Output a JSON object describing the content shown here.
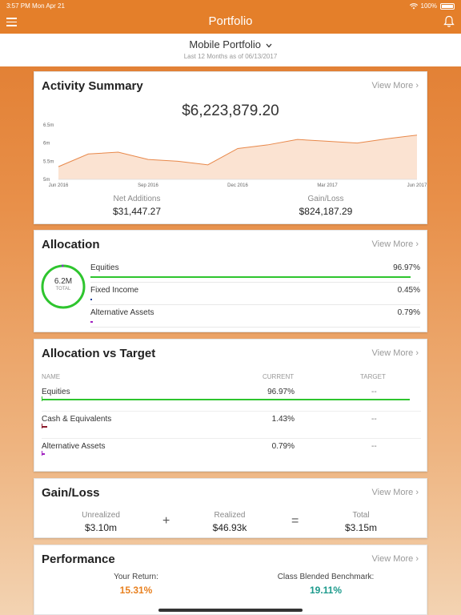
{
  "status_bar": {
    "time": "3:57 PM",
    "date": "Mon Apr 21",
    "battery": "100%"
  },
  "nav": {
    "title": "Portfolio",
    "menu_icon": "hamburger-menu-icon",
    "bell_icon": "bell-icon"
  },
  "header": {
    "portfolio_name": "Mobile Portfolio",
    "subtitle": "Last 12 Months as of 06/13/2017"
  },
  "activity": {
    "title": "Activity Summary",
    "view_more": "View More ›",
    "total": "$6,223,879.20",
    "net_additions_label": "Net Additions",
    "net_additions": "$31,447.27",
    "gain_loss_label": "Gain/Loss",
    "gain_loss": "$824,187.29"
  },
  "chart_data": {
    "type": "area",
    "x": [
      "Jun 2016",
      "Jul 2016",
      "Aug 2016",
      "Sep 2016",
      "Oct 2016",
      "Nov 2016",
      "Dec 2016",
      "Jan 2017",
      "Feb 2017",
      "Mar 2017",
      "Apr 2017",
      "May 2017",
      "Jun 2017"
    ],
    "values": [
      5.35,
      5.7,
      5.75,
      5.55,
      5.5,
      5.4,
      5.85,
      5.95,
      6.1,
      6.05,
      6.0,
      6.12,
      6.22
    ],
    "ylim": [
      5.0,
      6.5
    ],
    "y_ticks": [
      "5m",
      "5.5m",
      "6m",
      "6.5m"
    ],
    "x_ticks": [
      "Jun 2016",
      "Sep 2016",
      "Dec 2016",
      "Mar 2017",
      "Jun 2017"
    ],
    "line_color": "#e8884a",
    "fill_color": "#fbe3d2"
  },
  "allocation": {
    "title": "Allocation",
    "view_more": "View More ›",
    "total_value": "6.2M",
    "total_label": "TOTAL",
    "items": [
      {
        "name": "Equities",
        "percent": "96.97%",
        "value": 96.97,
        "color": "#2ec52e"
      },
      {
        "name": "Fixed Income",
        "percent": "0.45%",
        "value": 0.45,
        "color": "#1a3fa0"
      },
      {
        "name": "Alternative Assets",
        "percent": "0.79%",
        "value": 0.79,
        "color": "#a020c0"
      }
    ]
  },
  "allocation_vs_target": {
    "title": "Allocation vs Target",
    "view_more": "View More ›",
    "col_name": "NAME",
    "col_current": "CURRENT",
    "col_target": "TARGET",
    "rows": [
      {
        "name": "Equities",
        "current": "96.97%",
        "target": "--",
        "value": 96.97,
        "color": "#2ec52e"
      },
      {
        "name": "Cash & Equivalents",
        "current": "1.43%",
        "target": "--",
        "value": 1.43,
        "color": "#8b1a2b"
      },
      {
        "name": "Alternative Assets",
        "current": "0.79%",
        "target": "--",
        "value": 0.79,
        "color": "#a020c0"
      }
    ]
  },
  "gain_loss": {
    "title": "Gain/Loss",
    "view_more": "View More ›",
    "unrealized_label": "Unrealized",
    "unrealized": "$3.10m",
    "plus": "+",
    "realized_label": "Realized",
    "realized": "$46.93k",
    "equals": "=",
    "total_label": "Total",
    "total": "$3.15m"
  },
  "performance": {
    "title": "Performance",
    "view_more": "View More ›",
    "your_return_label": "Your Return:",
    "your_return": "15.31%",
    "your_return_color": "#e8801f",
    "benchmark_label": "Class Blended Benchmark:",
    "benchmark": "19.11%",
    "benchmark_color": "#1c9a8c"
  }
}
